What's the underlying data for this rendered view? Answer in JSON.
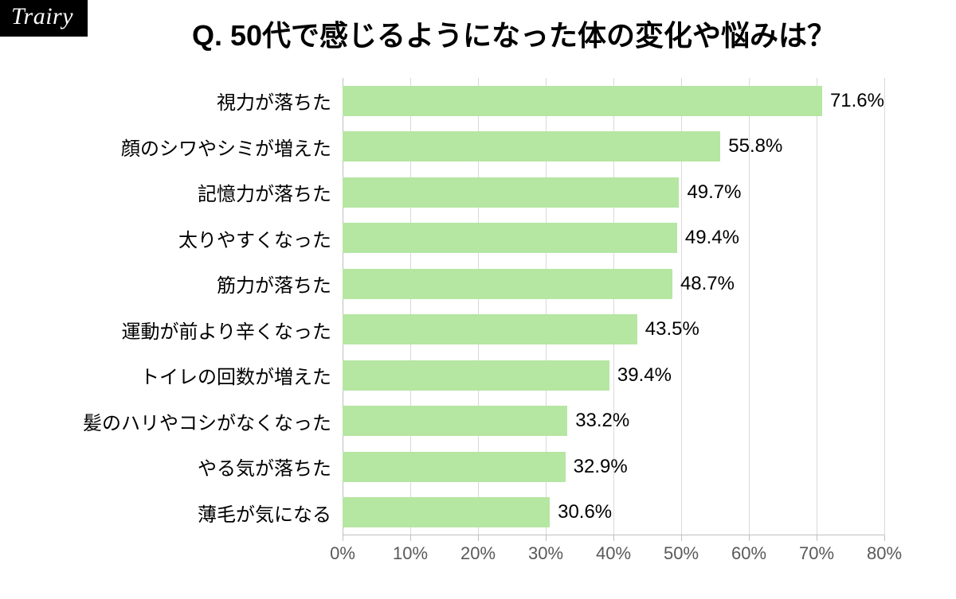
{
  "logo": "Trairy",
  "title": "Q. 50代で感じるようになった体の変化や悩みは？",
  "chart": {
    "type": "bar-horizontal",
    "bar_color": "#b5e6a2",
    "background_color": "#ffffff",
    "grid_color": "#d9d9d9",
    "axis_color": "#bfbfbf",
    "label_color": "#000000",
    "tick_label_color": "#595959",
    "title_fontsize": 36,
    "label_fontsize": 24,
    "tick_fontsize": 22,
    "xlim": [
      0,
      80
    ],
    "xtick_step": 10,
    "xticks": [
      0,
      10,
      20,
      30,
      40,
      50,
      60,
      70,
      80
    ],
    "xtick_labels": [
      "0%",
      "10%",
      "20%",
      "30%",
      "40%",
      "50%",
      "60%",
      "70%",
      "80%"
    ],
    "bar_height_ratio": 0.66,
    "categories": [
      "視力が落ちた",
      "顔のシワやシミが増えた",
      "記憶力が落ちた",
      "太りやすくなった",
      "筋力が落ちた",
      "運動が前より辛くなった",
      "トイレの回数が増えた",
      "髪のハリやコシがなくなった",
      "やる気が落ちた",
      "薄毛が気になる"
    ],
    "values": [
      71.6,
      55.8,
      49.7,
      49.4,
      48.7,
      43.5,
      39.4,
      33.2,
      32.9,
      30.6
    ],
    "value_labels": [
      "71.6%",
      "55.8%",
      "49.7%",
      "49.4%",
      "48.7%",
      "43.5%",
      "39.4%",
      "33.2%",
      "32.9%",
      "30.6%"
    ]
  }
}
